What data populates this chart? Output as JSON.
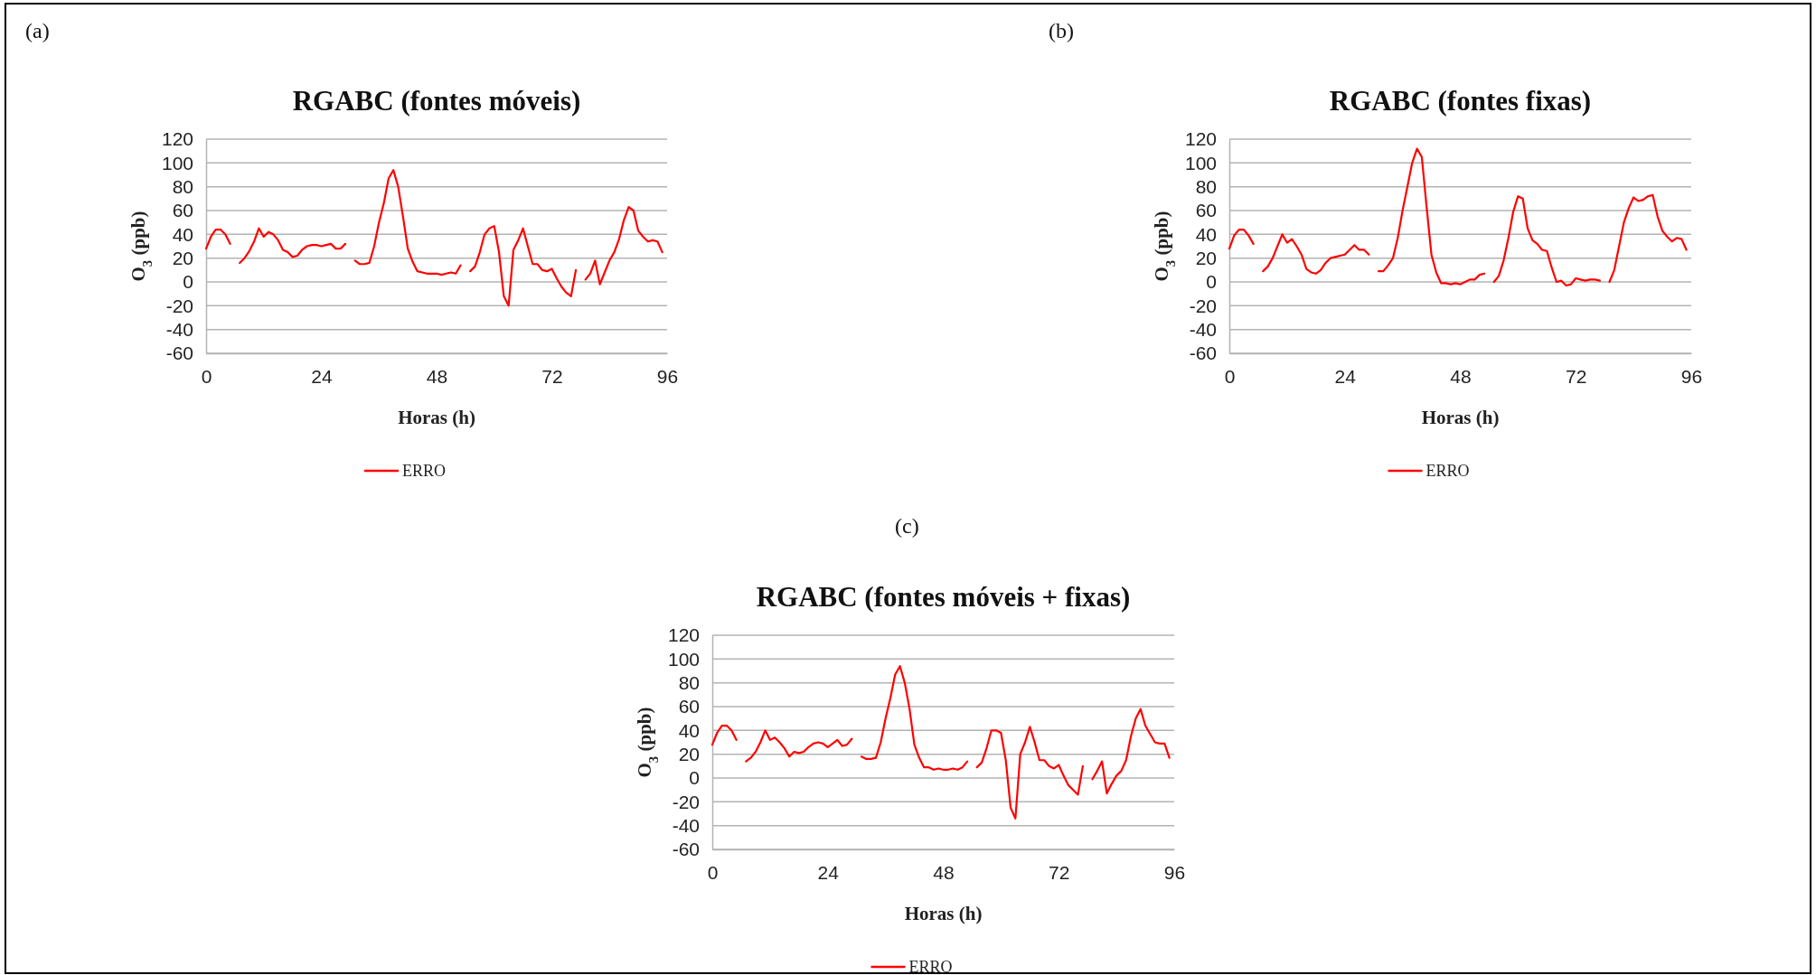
{
  "chart_data": [
    {
      "type": "line",
      "title": "RGABC (fontes móveis)",
      "xlabel": "Horas (h)",
      "ylabel": "O$_{3}$ (ppb)",
      "annotations": [
        "(a)"
      ],
      "xlim": [
        0,
        96
      ],
      "xticks": [
        0,
        24,
        48,
        72,
        96
      ],
      "ylim": [
        -60,
        120
      ],
      "yticks": [
        -60,
        -40,
        -20,
        0,
        20,
        40,
        60,
        80,
        100,
        120
      ],
      "grid": "y",
      "legend": "bottom",
      "marker": "none",
      "line_style": "solid",
      "x": [
        0,
        1,
        2,
        3,
        4,
        5,
        6,
        7,
        8,
        9,
        10,
        11,
        12,
        13,
        14,
        15,
        16,
        17,
        18,
        19,
        20,
        21,
        22,
        23,
        24,
        25,
        26,
        27,
        28,
        29,
        30,
        31,
        32,
        33,
        34,
        35,
        36,
        37,
        38,
        39,
        40,
        41,
        42,
        43,
        44,
        45,
        46,
        47,
        48,
        49,
        50,
        51,
        52,
        53,
        54,
        55,
        56,
        57,
        58,
        59,
        60,
        61,
        62,
        63,
        64,
        65,
        66,
        67,
        68,
        69,
        70,
        71,
        72,
        73,
        74,
        75,
        76,
        77,
        78,
        79,
        80,
        81,
        82,
        83,
        84,
        85,
        86,
        87,
        88,
        89,
        90,
        91,
        92,
        93,
        94,
        95
      ],
      "series": [
        {
          "name": "ERRO",
          "color": "#ff0000",
          "values": [
            28,
            38,
            44,
            44,
            40,
            32,
            null,
            16,
            20,
            26,
            34,
            45,
            38,
            42,
            40,
            35,
            27,
            25,
            21,
            22,
            27,
            30,
            31,
            31,
            30,
            31,
            32,
            28,
            28,
            32,
            null,
            18,
            15,
            15,
            16,
            30,
            50,
            66,
            87,
            94,
            80,
            55,
            28,
            17,
            9,
            8,
            7,
            7,
            7,
            6,
            7,
            8,
            7,
            14,
            null,
            9,
            13,
            25,
            40,
            45,
            47,
            25,
            -12,
            -20,
            27,
            35,
            45,
            30,
            15,
            15,
            10,
            9,
            11,
            3,
            -4,
            -9,
            -12,
            10,
            null,
            2,
            7,
            18,
            -2,
            8,
            18,
            25,
            36,
            52,
            63,
            60,
            43,
            38,
            34,
            35,
            34,
            25
          ]
        }
      ]
    },
    {
      "type": "line",
      "title": "RGABC (fontes fixas)",
      "xlabel": "Horas (h)",
      "ylabel": "O$_{3}$ (ppb)",
      "annotations": [
        "(b)"
      ],
      "xlim": [
        0,
        96
      ],
      "xticks": [
        0,
        24,
        48,
        72,
        96
      ],
      "ylim": [
        -60,
        120
      ],
      "yticks": [
        -60,
        -40,
        -20,
        0,
        20,
        40,
        60,
        80,
        100,
        120
      ],
      "grid": "y",
      "legend": "bottom",
      "marker": "none",
      "line_style": "solid",
      "x": [
        0,
        1,
        2,
        3,
        4,
        5,
        6,
        7,
        8,
        9,
        10,
        11,
        12,
        13,
        14,
        15,
        16,
        17,
        18,
        19,
        20,
        21,
        22,
        23,
        24,
        25,
        26,
        27,
        28,
        29,
        30,
        31,
        32,
        33,
        34,
        35,
        36,
        37,
        38,
        39,
        40,
        41,
        42,
        43,
        44,
        45,
        46,
        47,
        48,
        49,
        50,
        51,
        52,
        53,
        54,
        55,
        56,
        57,
        58,
        59,
        60,
        61,
        62,
        63,
        64,
        65,
        66,
        67,
        68,
        69,
        70,
        71,
        72,
        73,
        74,
        75,
        76,
        77,
        78,
        79,
        80,
        81,
        82,
        83,
        84,
        85,
        86,
        87,
        88,
        89,
        90,
        91,
        92,
        93,
        94,
        95
      ],
      "series": [
        {
          "name": "ERRO",
          "color": "#ff0000",
          "values": [
            28,
            39,
            44,
            44,
            39,
            32,
            null,
            9,
            13,
            20,
            30,
            40,
            33,
            36,
            30,
            23,
            11,
            8,
            7,
            10,
            16,
            20,
            21,
            22,
            23,
            27,
            31,
            27,
            27,
            23,
            null,
            9,
            9,
            14,
            20,
            37,
            60,
            80,
            100,
            112,
            105,
            63,
            23,
            8,
            -1,
            -1,
            -2,
            -1,
            -2,
            0,
            2,
            2,
            6,
            7,
            null,
            0,
            5,
            18,
            37,
            59,
            72,
            70,
            45,
            35,
            32,
            27,
            26,
            12,
            0,
            1,
            -3,
            -2,
            3,
            2,
            1,
            2,
            2,
            1,
            null,
            0,
            10,
            30,
            50,
            62,
            71,
            68,
            69,
            72,
            73,
            55,
            43,
            38,
            34,
            37,
            36,
            27
          ]
        }
      ]
    },
    {
      "type": "line",
      "title": "RGABC (fontes móveis + fixas)",
      "xlabel": "Horas (h)",
      "ylabel": "O$_{3}$ (ppb)",
      "annotations": [
        "(c)"
      ],
      "xlim": [
        0,
        96
      ],
      "xticks": [
        0,
        24,
        48,
        72,
        96
      ],
      "ylim": [
        -60,
        120
      ],
      "yticks": [
        -60,
        -40,
        -20,
        0,
        20,
        40,
        60,
        80,
        100,
        120
      ],
      "grid": "y",
      "legend": "bottom",
      "marker": "none",
      "line_style": "solid",
      "x": [
        0,
        1,
        2,
        3,
        4,
        5,
        6,
        7,
        8,
        9,
        10,
        11,
        12,
        13,
        14,
        15,
        16,
        17,
        18,
        19,
        20,
        21,
        22,
        23,
        24,
        25,
        26,
        27,
        28,
        29,
        30,
        31,
        32,
        33,
        34,
        35,
        36,
        37,
        38,
        39,
        40,
        41,
        42,
        43,
        44,
        45,
        46,
        47,
        48,
        49,
        50,
        51,
        52,
        53,
        54,
        55,
        56,
        57,
        58,
        59,
        60,
        61,
        62,
        63,
        64,
        65,
        66,
        67,
        68,
        69,
        70,
        71,
        72,
        73,
        74,
        75,
        76,
        77,
        78,
        79,
        80,
        81,
        82,
        83,
        84,
        85,
        86,
        87,
        88,
        89,
        90,
        91,
        92,
        93,
        94,
        95
      ],
      "series": [
        {
          "name": "ERRO",
          "color": "#ff0000",
          "values": [
            28,
            38,
            44,
            44,
            40,
            32,
            null,
            14,
            17,
            22,
            30,
            40,
            32,
            34,
            30,
            25,
            18,
            22,
            21,
            22,
            26,
            29,
            30,
            29,
            26,
            29,
            32,
            27,
            28,
            33,
            null,
            18,
            16,
            16,
            17,
            30,
            50,
            67,
            87,
            94,
            80,
            58,
            28,
            17,
            9,
            9,
            7,
            8,
            7,
            7,
            8,
            7,
            9,
            14,
            null,
            9,
            13,
            25,
            40,
            40,
            38,
            15,
            -25,
            -34,
            20,
            30,
            43,
            30,
            15,
            15,
            10,
            8,
            11,
            2,
            -6,
            -10,
            -14,
            10,
            null,
            -1,
            6,
            14,
            -13,
            -5,
            2,
            6,
            15,
            35,
            50,
            58,
            44,
            37,
            30,
            29,
            29,
            17
          ]
        }
      ]
    }
  ]
}
